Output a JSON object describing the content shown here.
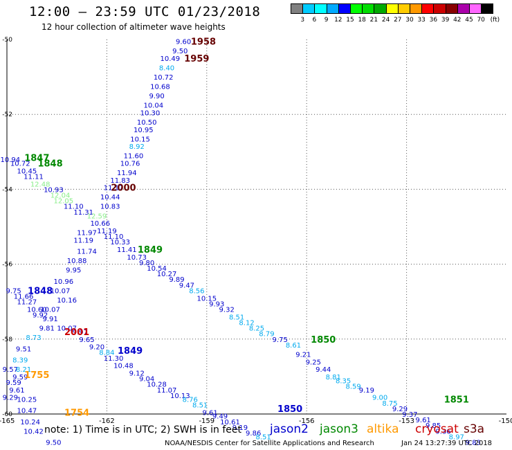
{
  "header": {
    "title": "12:00 – 23:59 UTC 01/23/2018",
    "subtitle": "12 hour collection of altimeter wave heights"
  },
  "legend": {
    "unit": "(ft)",
    "bins": [
      {
        "label": "",
        "color": "#808080"
      },
      {
        "label": "3",
        "color": "#00ccff"
      },
      {
        "label": "6",
        "color": "#00ffff"
      },
      {
        "label": "9",
        "color": "#00aaff"
      },
      {
        "label": "12",
        "color": "#0000ff"
      },
      {
        "label": "15",
        "color": "#00ff00"
      },
      {
        "label": "18",
        "color": "#00dd00"
      },
      {
        "label": "21",
        "color": "#00aa00"
      },
      {
        "label": "24",
        "color": "#ffff00"
      },
      {
        "label": "27",
        "color": "#ffcc00"
      },
      {
        "label": "30",
        "color": "#ff9900"
      },
      {
        "label": "33",
        "color": "#ff0000"
      },
      {
        "label": "36",
        "color": "#cc0000"
      },
      {
        "label": "39",
        "color": "#880000"
      },
      {
        "label": "42",
        "color": "#aa00aa"
      },
      {
        "label": "45",
        "color": "#ff66ff"
      },
      {
        "label": "70",
        "color": "#000000"
      }
    ]
  },
  "axes": {
    "lon_ticks": [
      "-165",
      "-162",
      "-159",
      "-156",
      "-153",
      "-150"
    ],
    "lat_ticks": [
      "-50",
      "-52",
      "-54",
      "-56",
      "-58",
      "-60"
    ]
  },
  "colors": {
    "jason2": "#0000cc",
    "jason2_light": "#00aaee",
    "jason3": "#008800",
    "jason3_light": "#88ee88",
    "altika": "#ff9900",
    "cryosat": "#cc0000",
    "s3a": "#660000"
  },
  "footer": {
    "note": "note: 1) Time is in UTC; 2) SWH is in feet",
    "satellites": [
      {
        "name": "jason2",
        "color": "#0000cc"
      },
      {
        "name": "jason3",
        "color": "#008800"
      },
      {
        "name": "altika",
        "color": "#ff9900"
      },
      {
        "name": "cryosat",
        "color": "#cc0000"
      },
      {
        "name": "s3a",
        "color": "#660000"
      }
    ],
    "credit": "NOAA/NESDIS Center for Satellite Applications and Research",
    "timestamp": "Jan 24 13:27:39 UTC 2018"
  },
  "map_data": {
    "lon_range": [
      -165,
      -150
    ],
    "lat_range": [
      -60,
      -50
    ],
    "track_labels": [
      {
        "text": "1958",
        "lon": -159.1,
        "lat": -50.05,
        "color": "#660000"
      },
      {
        "text": "1959",
        "lon": -159.3,
        "lat": -50.5,
        "color": "#660000"
      },
      {
        "text": "2000",
        "lon": -161.5,
        "lat": -53.95,
        "color": "#660000"
      },
      {
        "text": "1847",
        "lon": -164.1,
        "lat": -53.15,
        "color": "#008800"
      },
      {
        "text": "1848",
        "lon": -163.7,
        "lat": -53.3,
        "color": "#008800"
      },
      {
        "text": "1849",
        "lon": -160.7,
        "lat": -55.6,
        "color": "#008800"
      },
      {
        "text": "1850",
        "lon": -155.5,
        "lat": -58.0,
        "color": "#008800"
      },
      {
        "text": "1851",
        "lon": -151.5,
        "lat": -59.6,
        "color": "#008800"
      },
      {
        "text": "1848",
        "lon": -164.0,
        "lat": -56.7,
        "color": "#0000cc"
      },
      {
        "text": "1849",
        "lon": -161.3,
        "lat": -58.3,
        "color": "#0000cc"
      },
      {
        "text": "1850",
        "lon": -156.5,
        "lat": -59.85,
        "color": "#0000cc"
      },
      {
        "text": "1755",
        "lon": -164.1,
        "lat": -58.95,
        "color": "#ff9900"
      },
      {
        "text": "1754",
        "lon": -162.9,
        "lat": -59.95,
        "color": "#ff9900"
      },
      {
        "text": "2001",
        "lon": -162.9,
        "lat": -57.8,
        "color": "#cc0000"
      }
    ],
    "obs": [
      {
        "v": "9.60",
        "lon": -159.7,
        "lat": -50.05,
        "c": "j2"
      },
      {
        "v": "9.50",
        "lon": -159.8,
        "lat": -50.3,
        "c": "j2"
      },
      {
        "v": "10.49",
        "lon": -160.1,
        "lat": -50.5,
        "c": "j2"
      },
      {
        "v": "8.40",
        "lon": -160.2,
        "lat": -50.75,
        "c": "j2l"
      },
      {
        "v": "10.72",
        "lon": -160.3,
        "lat": -51.0,
        "c": "j2"
      },
      {
        "v": "10.68",
        "lon": -160.4,
        "lat": -51.25,
        "c": "j2"
      },
      {
        "v": "9.90",
        "lon": -160.5,
        "lat": -51.5,
        "c": "j2"
      },
      {
        "v": "10.04",
        "lon": -160.6,
        "lat": -51.75,
        "c": "j2"
      },
      {
        "v": "10.30",
        "lon": -160.7,
        "lat": -51.95,
        "c": "j2"
      },
      {
        "v": "10.50",
        "lon": -160.8,
        "lat": -52.2,
        "c": "j2"
      },
      {
        "v": "10.95",
        "lon": -160.9,
        "lat": -52.4,
        "c": "j2"
      },
      {
        "v": "10.15",
        "lon": -161.0,
        "lat": -52.65,
        "c": "j2"
      },
      {
        "v": "8.92",
        "lon": -161.1,
        "lat": -52.85,
        "c": "j2l"
      },
      {
        "v": "11.60",
        "lon": -161.2,
        "lat": -53.1,
        "c": "j2"
      },
      {
        "v": "10.76",
        "lon": -161.3,
        "lat": -53.3,
        "c": "j2"
      },
      {
        "v": "11.94",
        "lon": -161.4,
        "lat": -53.55,
        "c": "j2"
      },
      {
        "v": "11.83",
        "lon": -161.6,
        "lat": -53.75,
        "c": "j2"
      },
      {
        "v": "11.17",
        "lon": -161.8,
        "lat": -53.95,
        "c": "j2"
      },
      {
        "v": "10.44",
        "lon": -161.9,
        "lat": -54.2,
        "c": "j2"
      },
      {
        "v": "10.83",
        "lon": -161.9,
        "lat": -54.45,
        "c": "j2"
      },
      {
        "v": "10.94",
        "lon": -164.9,
        "lat": -53.2,
        "c": "j2"
      },
      {
        "v": "10.72",
        "lon": -164.6,
        "lat": -53.3,
        "c": "j2"
      },
      {
        "v": "10.45",
        "lon": -164.4,
        "lat": -53.5,
        "c": "j2"
      },
      {
        "v": "11.11",
        "lon": -164.2,
        "lat": -53.65,
        "c": "j2"
      },
      {
        "v": "12.48",
        "lon": -164.0,
        "lat": -53.85,
        "c": "j3l"
      },
      {
        "v": "10.93",
        "lon": -163.6,
        "lat": -54.0,
        "c": "j2"
      },
      {
        "v": "12.04",
        "lon": -163.4,
        "lat": -54.15,
        "c": "j3l"
      },
      {
        "v": "12.05",
        "lon": -163.3,
        "lat": -54.3,
        "c": "j3l"
      },
      {
        "v": "11.10",
        "lon": -163.0,
        "lat": -54.45,
        "c": "j2"
      },
      {
        "v": "11.31",
        "lon": -162.7,
        "lat": -54.6,
        "c": "j2"
      },
      {
        "v": "12.59",
        "lon": -162.3,
        "lat": -54.7,
        "c": "j3l"
      },
      {
        "v": "10.66",
        "lon": -162.2,
        "lat": -54.9,
        "c": "j2"
      },
      {
        "v": "11.19",
        "lon": -162.0,
        "lat": -55.1,
        "c": "j2"
      },
      {
        "v": "11.97",
        "lon": -162.6,
        "lat": -55.15,
        "c": "j2"
      },
      {
        "v": "11.10",
        "lon": -161.8,
        "lat": -55.25,
        "c": "j2"
      },
      {
        "v": "11.19",
        "lon": -162.7,
        "lat": -55.35,
        "c": "j2"
      },
      {
        "v": "10.33",
        "lon": -161.6,
        "lat": -55.4,
        "c": "j2"
      },
      {
        "v": "11.41",
        "lon": -161.4,
        "lat": -55.6,
        "c": "j2"
      },
      {
        "v": "11.74",
        "lon": -162.6,
        "lat": -55.65,
        "c": "j2"
      },
      {
        "v": "10.73",
        "lon": -161.1,
        "lat": -55.8,
        "c": "j2"
      },
      {
        "v": "9.80",
        "lon": -160.8,
        "lat": -55.95,
        "c": "j2"
      },
      {
        "v": "10.88",
        "lon": -162.9,
        "lat": -55.9,
        "c": "j2"
      },
      {
        "v": "10.54",
        "lon": -160.5,
        "lat": -56.1,
        "c": "j2"
      },
      {
        "v": "9.95",
        "lon": -163.0,
        "lat": -56.15,
        "c": "j2"
      },
      {
        "v": "10.27",
        "lon": -160.2,
        "lat": -56.25,
        "c": "j2"
      },
      {
        "v": "9.89",
        "lon": -159.9,
        "lat": -56.4,
        "c": "j2"
      },
      {
        "v": "10.96",
        "lon": -163.3,
        "lat": -56.45,
        "c": "j2"
      },
      {
        "v": "9.47",
        "lon": -159.6,
        "lat": -56.55,
        "c": "j2"
      },
      {
        "v": "9.75",
        "lon": -164.8,
        "lat": -56.7,
        "c": "j2"
      },
      {
        "v": "10.07",
        "lon": -163.4,
        "lat": -56.7,
        "c": "j2"
      },
      {
        "v": "8.56",
        "lon": -159.3,
        "lat": -56.7,
        "c": "j2l"
      },
      {
        "v": "11.66",
        "lon": -164.5,
        "lat": -56.85,
        "c": "j2"
      },
      {
        "v": "10.16",
        "lon": -163.2,
        "lat": -56.95,
        "c": "j2"
      },
      {
        "v": "10.15",
        "lon": -159.0,
        "lat": -56.9,
        "c": "j2"
      },
      {
        "v": "11.27",
        "lon": -164.4,
        "lat": -57.0,
        "c": "j2"
      },
      {
        "v": "9.93",
        "lon": -158.7,
        "lat": -57.05,
        "c": "j2"
      },
      {
        "v": "10.60",
        "lon": -164.1,
        "lat": -57.2,
        "c": "j2"
      },
      {
        "v": "10.07",
        "lon": -163.7,
        "lat": -57.2,
        "c": "j2"
      },
      {
        "v": "9.32",
        "lon": -158.4,
        "lat": -57.2,
        "c": "j2"
      },
      {
        "v": "9.92",
        "lon": -164.0,
        "lat": -57.35,
        "c": "j2"
      },
      {
        "v": "8.51",
        "lon": -158.1,
        "lat": -57.4,
        "c": "j2l"
      },
      {
        "v": "9.91",
        "lon": -163.7,
        "lat": -57.45,
        "c": "j2"
      },
      {
        "v": "8.12",
        "lon": -157.8,
        "lat": -57.55,
        "c": "j2l"
      },
      {
        "v": "9.81",
        "lon": -163.8,
        "lat": -57.7,
        "c": "j2"
      },
      {
        "v": "10.07",
        "lon": -163.2,
        "lat": -57.7,
        "c": "j2"
      },
      {
        "v": "8.25",
        "lon": -157.5,
        "lat": -57.7,
        "c": "j2l"
      },
      {
        "v": "9.97",
        "lon": -162.8,
        "lat": -57.8,
        "c": "j2"
      },
      {
        "v": "8.79",
        "lon": -157.2,
        "lat": -57.85,
        "c": "j2l"
      },
      {
        "v": "8.73",
        "lon": -164.2,
        "lat": -57.95,
        "c": "j2l"
      },
      {
        "v": "9.65",
        "lon": -162.6,
        "lat": -58.0,
        "c": "j2"
      },
      {
        "v": "9.75",
        "lon": -156.8,
        "lat": -58.0,
        "c": "j2"
      },
      {
        "v": "9.20",
        "lon": -162.3,
        "lat": -58.2,
        "c": "j2"
      },
      {
        "v": "8.61",
        "lon": -156.4,
        "lat": -58.15,
        "c": "j2l"
      },
      {
        "v": "9.51",
        "lon": -164.5,
        "lat": -58.25,
        "c": "j2"
      },
      {
        "v": "8.84",
        "lon": -162.0,
        "lat": -58.35,
        "c": "j2l"
      },
      {
        "v": "9.21",
        "lon": -156.1,
        "lat": -58.4,
        "c": "j2"
      },
      {
        "v": "8.39",
        "lon": -164.6,
        "lat": -58.55,
        "c": "j2l"
      },
      {
        "v": "11.30",
        "lon": -161.8,
        "lat": -58.5,
        "c": "j2"
      },
      {
        "v": "9.25",
        "lon": -155.8,
        "lat": -58.6,
        "c": "j2"
      },
      {
        "v": "10.48",
        "lon": -161.5,
        "lat": -58.7,
        "c": "j2"
      },
      {
        "v": "9.44",
        "lon": -155.5,
        "lat": -58.8,
        "c": "j2"
      },
      {
        "v": "9.57",
        "lon": -164.9,
        "lat": -58.8,
        "c": "j2"
      },
      {
        "v": "8.21",
        "lon": -164.5,
        "lat": -58.8,
        "c": "j2l"
      },
      {
        "v": "9.12",
        "lon": -161.1,
        "lat": -58.9,
        "c": "j2"
      },
      {
        "v": "8.81",
        "lon": -155.2,
        "lat": -59.0,
        "c": "j2l"
      },
      {
        "v": "9.59",
        "lon": -164.6,
        "lat": -59.0,
        "c": "j2"
      },
      {
        "v": "9.04",
        "lon": -160.8,
        "lat": -59.05,
        "c": "j2"
      },
      {
        "v": "8.35",
        "lon": -154.9,
        "lat": -59.1,
        "c": "j2l"
      },
      {
        "v": "9.59",
        "lon": -164.8,
        "lat": -59.15,
        "c": "j2"
      },
      {
        "v": "10.28",
        "lon": -160.5,
        "lat": -59.2,
        "c": "j2"
      },
      {
        "v": "8.59",
        "lon": -154.6,
        "lat": -59.25,
        "c": "j2l"
      },
      {
        "v": "9.61",
        "lon": -164.7,
        "lat": -59.35,
        "c": "j2"
      },
      {
        "v": "11.07",
        "lon": -160.2,
        "lat": -59.35,
        "c": "j2"
      },
      {
        "v": "9.19",
        "lon": -154.2,
        "lat": -59.35,
        "c": "j2"
      },
      {
        "v": "10.13",
        "lon": -159.8,
        "lat": -59.5,
        "c": "j2"
      },
      {
        "v": "9.29",
        "lon": -164.9,
        "lat": -59.55,
        "c": "j2"
      },
      {
        "v": "10.25",
        "lon": -164.4,
        "lat": -59.6,
        "c": "j2"
      },
      {
        "v": "8.76",
        "lon": -159.5,
        "lat": -59.6,
        "c": "j2l"
      },
      {
        "v": "9.00",
        "lon": -153.8,
        "lat": -59.55,
        "c": "j2l"
      },
      {
        "v": "8.51",
        "lon": -159.2,
        "lat": -59.75,
        "c": "j2l"
      },
      {
        "v": "8.75",
        "lon": -153.5,
        "lat": -59.7,
        "c": "j2l"
      },
      {
        "v": "10.47",
        "lon": -164.4,
        "lat": -59.9,
        "c": "j2"
      },
      {
        "v": "9.61",
        "lon": -158.9,
        "lat": -59.95,
        "c": "j2"
      },
      {
        "v": "9.29",
        "lon": -153.2,
        "lat": -59.85,
        "c": "j2"
      },
      {
        "v": "9.49",
        "lon": -158.6,
        "lat": -60.05,
        "c": "j2"
      },
      {
        "v": "9.37",
        "lon": -152.9,
        "lat": -60.0,
        "c": "j2"
      },
      {
        "v": "10.24",
        "lon": -164.3,
        "lat": -60.2,
        "c": "j2"
      },
      {
        "v": "10.61",
        "lon": -158.3,
        "lat": -60.2,
        "c": "j2"
      },
      {
        "v": "9.61",
        "lon": -152.5,
        "lat": -60.15,
        "c": "j2"
      },
      {
        "v": "9.19",
        "lon": -158.0,
        "lat": -60.35,
        "c": "j2"
      },
      {
        "v": "9.85",
        "lon": -152.2,
        "lat": -60.3,
        "c": "j2"
      },
      {
        "v": "10.42",
        "lon": -164.2,
        "lat": -60.45,
        "c": "j2"
      },
      {
        "v": "9.86",
        "lon": -157.6,
        "lat": -60.5,
        "c": "j2"
      },
      {
        "v": "9.36",
        "lon": -151.9,
        "lat": -60.45,
        "c": "j2"
      },
      {
        "v": "8.51",
        "lon": -157.3,
        "lat": -60.6,
        "c": "j2l"
      },
      {
        "v": "8.97",
        "lon": -151.5,
        "lat": -60.6,
        "c": "j2l"
      },
      {
        "v": "9.50",
        "lon": -163.6,
        "lat": -60.75,
        "c": "j2"
      },
      {
        "v": "9.83",
        "lon": -151.0,
        "lat": -60.75,
        "c": "j2"
      }
    ]
  }
}
